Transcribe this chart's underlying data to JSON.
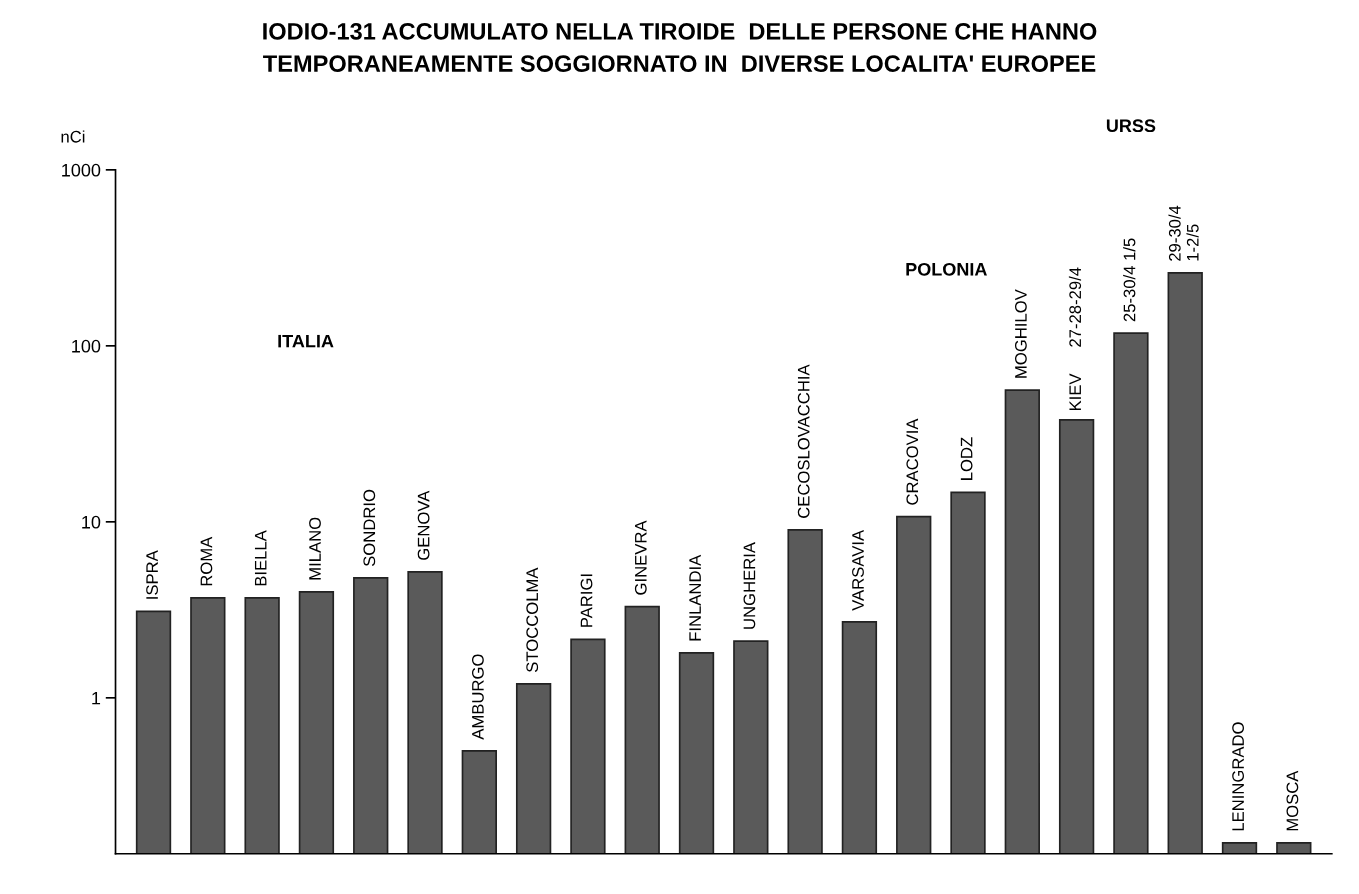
{
  "chart_data": {
    "type": "bar",
    "title": "IODIO-131 ACCUMULATO NELLA TIROIDE  DELLE PERSONE CHE HANNO\nTEMPORANEAMENTE SOGGIORNATO IN  DIVERSE LOCALITA' EUROPEE",
    "ylabel": "nCi",
    "categories": [
      "ISPRA",
      "ROMA",
      "BIELLA",
      "MILANO",
      "SONDRIO",
      "GENOVA",
      "AMBURGO",
      "STOCCOLMA",
      "PARIGI",
      "GINEVRA",
      "FINLANDIA",
      "UNGHERIA",
      "CECOSLOVACCHIA",
      "VARSAVIA",
      "CRACOVIA",
      "LODZ",
      "MOGHILOV",
      "27-28-29/4",
      "25-30/4 1/5",
      "29-30/4\n1-2/5",
      "LENINGRADO",
      "MOSCA"
    ],
    "values": [
      3.1,
      3.7,
      3.7,
      4.0,
      4.8,
      5.2,
      0.5,
      1.2,
      2.15,
      3.3,
      1.8,
      2.1,
      9.0,
      2.7,
      10.7,
      14.7,
      56,
      38,
      118,
      260,
      0.15,
      0.15
    ],
    "color": "#5a5a5a",
    "log": true,
    "ylim": [
      0.13,
      1000
    ],
    "yticks": [
      1,
      10,
      100,
      1000
    ],
    "tick_labels": "y",
    "grid": false,
    "annotations": [
      "ITALIA",
      "POLONIA",
      "URSS",
      "KIEV"
    ]
  }
}
